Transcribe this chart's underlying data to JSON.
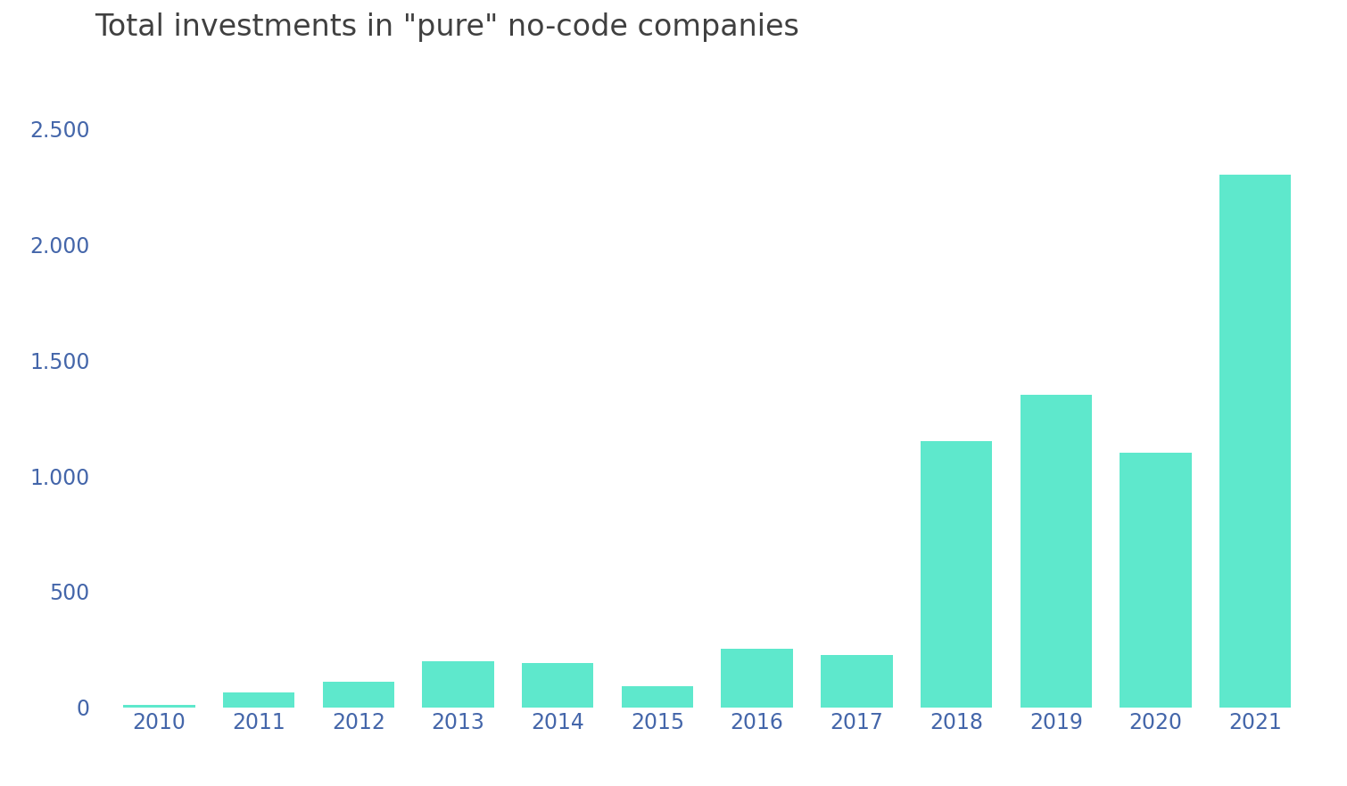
{
  "title": "Total investments in \"pure\" no-code companies",
  "categories": [
    2010,
    2011,
    2012,
    2013,
    2014,
    2015,
    2016,
    2017,
    2018,
    2019,
    2020,
    2021
  ],
  "values": [
    10,
    65,
    110,
    200,
    190,
    90,
    255,
    225,
    1150,
    1350,
    1100,
    2300
  ],
  "bar_color": "#5ee8cc",
  "title_color": "#404040",
  "title_fontsize": 24,
  "tick_label_color": "#4466aa",
  "tick_fontsize": 17,
  "ylim": [
    0,
    2750
  ],
  "yticks": [
    0,
    500,
    1000,
    1500,
    2000,
    2500
  ],
  "background_color": "#ffffff",
  "bar_width": 0.72
}
